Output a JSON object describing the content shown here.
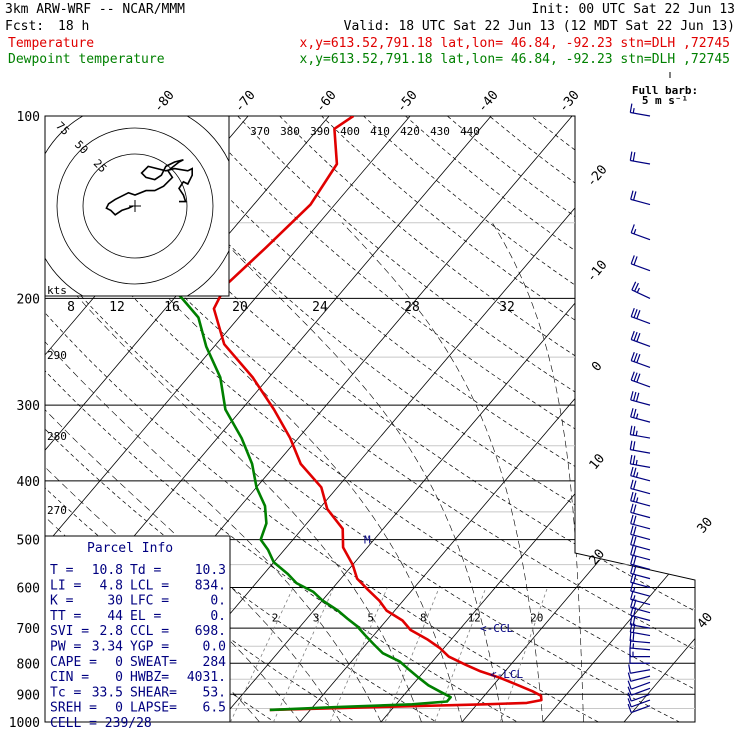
{
  "header": {
    "model": "3km ARW-WRF -- NCAR/MMM",
    "init": "Init: 00 UTC Sat 22 Jun 13",
    "fcst_label": "Fcst:",
    "fcst_value": "18 h",
    "valid": "Valid: 18 UTC Sat 22 Jun 13 (12 MDT Sat 22 Jun 13)",
    "series": [
      {
        "name": "Temperature",
        "info": "x,y=613.52,791.18   lat,lon= 46.84, -92.23  stn=DLH ,72745",
        "color": "#e00000"
      },
      {
        "name": "Dewpoint temperature",
        "info": "x,y=613.52,791.18   lat,lon= 46.84, -92.23  stn=DLH ,72745",
        "color": "#008000"
      }
    ]
  },
  "barb_legend": {
    "title": "Full barb:",
    "value": "5 m s⁻¹"
  },
  "chart_data": {
    "type": "line",
    "pressure_ticks": [
      100,
      200,
      300,
      400,
      500,
      600,
      700,
      800,
      900,
      1000
    ],
    "isotherm_labels": [
      -80,
      -70,
      -60,
      -50,
      -40,
      -30,
      -20,
      -10,
      0,
      10,
      20,
      30,
      40
    ],
    "theta_labels": [
      370,
      380,
      390,
      400,
      410,
      420,
      430,
      440
    ],
    "theta_side_labels": [
      290,
      280,
      270
    ],
    "mixing_ratio_labels": [
      2,
      3,
      5,
      8,
      12,
      20
    ],
    "series": [
      {
        "name": "Temperature",
        "color": "#e00000",
        "p": [
          955,
          945,
          935,
          930,
          920,
          905,
          890,
          865,
          845,
          825,
          805,
          780,
          755,
          730,
          705,
          680,
          655,
          630,
          605,
          580,
          550,
          515,
          480,
          445,
          410,
          375,
          340,
          305,
          270,
          238,
          208,
          190,
          165,
          140,
          120,
          105,
          100
        ],
        "t": [
          -5,
          8,
          21,
          26,
          27.5,
          27,
          25.5,
          22.5,
          20,
          17,
          14.5,
          11.5,
          9.5,
          7,
          4,
          2,
          -1,
          -3,
          -5.5,
          -8,
          -10,
          -13,
          -15,
          -19,
          -22,
          -27,
          -31,
          -36,
          -42,
          -49,
          -54,
          -55,
          -54,
          -53,
          -54,
          -58,
          -57
        ]
      },
      {
        "name": "Dewpoint temperature",
        "color": "#008000",
        "p": [
          955,
          945,
          935,
          925,
          910,
          890,
          870,
          845,
          820,
          795,
          770,
          745,
          720,
          695,
          675,
          655,
          630,
          610,
          590,
          570,
          545,
          520,
          500,
          470,
          440,
          410,
          375,
          340,
          305,
          270,
          240,
          215,
          200,
          190,
          175,
          150,
          135,
          120,
          105,
          100
        ],
        "td": [
          -5,
          3,
          12,
          16,
          16,
          14,
          12,
          10,
          8,
          6,
          3,
          1,
          -1,
          -3,
          -5,
          -7,
          -10,
          -12,
          -15,
          -17,
          -20,
          -22,
          -24,
          -25,
          -27,
          -30,
          -33,
          -37,
          -42,
          -46,
          -51,
          -55,
          -59,
          -62,
          -66,
          -70,
          -72,
          -74,
          -76,
          -77
        ]
      }
    ],
    "winds": {
      "p": [
        100,
        120,
        140,
        160,
        180,
        200,
        220,
        240,
        260,
        280,
        300,
        320,
        340,
        360,
        380,
        400,
        420,
        440,
        460,
        480,
        500,
        520,
        540,
        560,
        580,
        600,
        620,
        640,
        660,
        680,
        700,
        720,
        740,
        760,
        780,
        800,
        820,
        840,
        860,
        880,
        900,
        920,
        940
      ],
      "speed": [
        8,
        10,
        10,
        9,
        12,
        13,
        16,
        15,
        16,
        16,
        15,
        14,
        14,
        12,
        13,
        13,
        12,
        13,
        12,
        12,
        12,
        12,
        11,
        10,
        10,
        10,
        9,
        9,
        10,
        10,
        11,
        11,
        11,
        9,
        9,
        7,
        7,
        7,
        6,
        6,
        5,
        5,
        5
      ],
      "dir": [
        280,
        280,
        285,
        290,
        290,
        295,
        290,
        290,
        290,
        290,
        285,
        285,
        280,
        280,
        280,
        285,
        285,
        285,
        285,
        285,
        285,
        285,
        285,
        285,
        285,
        285,
        285,
        285,
        285,
        285,
        280,
        280,
        275,
        275,
        270,
        270,
        260,
        255,
        250,
        250,
        250,
        250,
        250
      ]
    },
    "markers": [
      {
        "label": "M",
        "p": 500
      },
      {
        "label": "<-CCL",
        "p": 700
      },
      {
        "label": "<-LCL",
        "p": 834
      }
    ]
  },
  "hodograph": {
    "units_label": "kts",
    "ring_labels": [
      "75",
      "50",
      "25"
    ],
    "speed_axis": [
      "8",
      "12",
      "16",
      "20",
      "24",
      "28",
      "32"
    ],
    "u": [
      -1,
      -3,
      -6,
      -9,
      -11,
      -13,
      -12,
      -9,
      -3,
      0,
      5,
      9,
      13,
      17,
      15,
      20,
      22,
      18,
      14,
      12,
      9,
      5,
      3,
      6,
      14,
      18,
      24,
      26,
      26,
      24,
      22,
      20,
      22,
      23,
      22,
      20
    ],
    "v": [
      0,
      -1,
      -2,
      -4,
      -2,
      -1,
      1,
      3,
      6,
      5,
      7,
      7,
      9,
      13,
      16,
      20,
      21,
      20,
      18,
      14,
      12,
      13,
      15,
      18,
      16,
      17,
      16,
      17,
      14,
      10,
      11,
      8,
      5,
      2,
      2,
      2
    ]
  },
  "parcel_info": {
    "title": "Parcel Info",
    "rows": [
      [
        "T  =",
        "10.8",
        "Td =",
        "10.3"
      ],
      [
        "LI =",
        "4.8",
        "LCL =",
        "834."
      ],
      [
        "K  =",
        "30",
        "LFC =",
        "0."
      ],
      [
        "TT =",
        "44",
        "EL  =",
        "0."
      ],
      [
        "SVI =",
        "2.8",
        "CCL =",
        "698."
      ],
      [
        "PW =",
        "3.34",
        "YGP =",
        "0.0"
      ],
      [
        "CAPE =",
        "0",
        "SWEAT=",
        "284"
      ],
      [
        "CIN  =",
        "0",
        "HWBZ=",
        "4031."
      ],
      [
        "Tc  =",
        "33.5",
        "SHEAR=",
        "53."
      ],
      [
        "SREH =",
        "0",
        "LAPSE=",
        "6.5"
      ]
    ],
    "cell": "CELL = 239/28"
  }
}
